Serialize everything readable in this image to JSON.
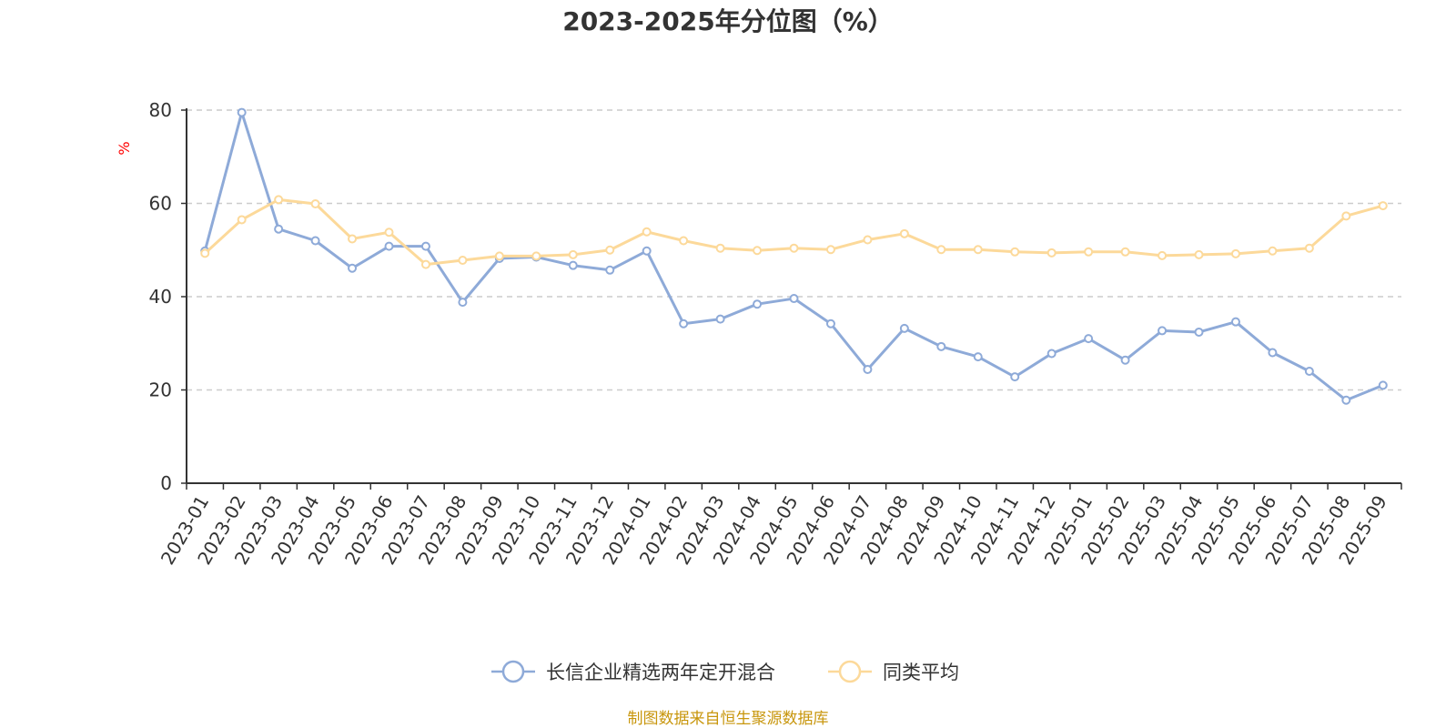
{
  "chart_data": {
    "type": "line",
    "title": "2023-2025年分位图（%）",
    "ylabel": "%",
    "xlabel": "",
    "ylim": [
      0,
      80
    ],
    "yticks": [
      0,
      20,
      40,
      60,
      80
    ],
    "grid": true,
    "legend_position": "bottom",
    "categories": [
      "2023-01",
      "2023-02",
      "2023-03",
      "2023-04",
      "2023-05",
      "2023-06",
      "2023-07",
      "2023-08",
      "2023-09",
      "2023-10",
      "2023-11",
      "2023-12",
      "2024-01",
      "2024-02",
      "2024-03",
      "2024-04",
      "2024-05",
      "2024-06",
      "2024-07",
      "2024-08",
      "2024-09",
      "2024-10",
      "2024-11",
      "2024-12",
      "2025-01",
      "2025-02",
      "2025-03",
      "2025-04",
      "2025-05",
      "2025-06",
      "2025-07",
      "2025-08",
      "2025-09"
    ],
    "series": [
      {
        "name": "长信企业精选两年定开混合",
        "color": "#8eaad8",
        "values": [
          49.8,
          79.5,
          54.5,
          52.0,
          46.1,
          50.8,
          50.8,
          38.8,
          48.2,
          48.5,
          46.7,
          45.7,
          49.8,
          34.2,
          35.2,
          38.4,
          39.6,
          34.2,
          24.4,
          33.2,
          29.3,
          27.1,
          22.8,
          27.8,
          31.0,
          26.4,
          32.7,
          32.4,
          34.6,
          28.0,
          24.0,
          17.8,
          21.0
        ]
      },
      {
        "name": "同类平均",
        "color": "#fcd99a",
        "values": [
          49.3,
          56.5,
          60.8,
          59.9,
          52.4,
          53.8,
          46.9,
          47.8,
          48.7,
          48.7,
          49.0,
          50.0,
          53.9,
          52.0,
          50.4,
          49.9,
          50.4,
          50.1,
          52.2,
          53.5,
          50.1,
          50.1,
          49.6,
          49.4,
          49.6,
          49.6,
          48.8,
          49.0,
          49.2,
          49.8,
          50.4,
          57.3,
          59.5
        ]
      }
    ]
  },
  "source_text": "制图数据来自恒生聚源数据库",
  "colors": {
    "axis": "#333333",
    "grid": "#cccccc",
    "unit_label": "#ff0000",
    "source_text": "#c8960c"
  }
}
